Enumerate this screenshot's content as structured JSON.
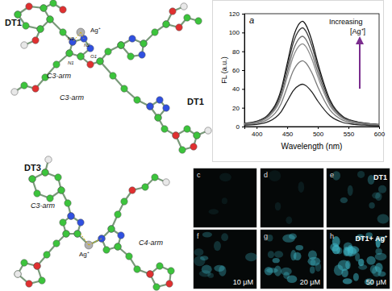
{
  "chart_data": {
    "type": "line",
    "title": "a",
    "x_label": "Wavelength (nm)",
    "y_label": "FL (a.u.)",
    "annotations": [
      "Increasing",
      "[Ag⁺]"
    ],
    "x": [
      380,
      400,
      420,
      440,
      450,
      460,
      470,
      475,
      480,
      490,
      500,
      520,
      540,
      560,
      580,
      600
    ],
    "series": [
      {
        "color": "#111111",
        "values": [
          3.4,
          5.6,
          13.4,
          39.2,
          67.2,
          95.2,
          109.8,
          112,
          108.6,
          91.8,
          67.2,
          28,
          11.2,
          5.6,
          3.4,
          2.2
        ]
      },
      {
        "color": "#3a3a3a",
        "values": [
          3.2,
          5.3,
          12.6,
          36.8,
          63,
          89.3,
          102.9,
          105,
          101.9,
          86.1,
          63,
          26.3,
          10.5,
          5.3,
          3.2,
          2.1
        ]
      },
      {
        "color": "#6e6e6e",
        "values": [
          2.9,
          4.8,
          11.5,
          33.6,
          57.6,
          81.6,
          94.1,
          96,
          93.1,
          78.7,
          57.6,
          24,
          9.6,
          4.8,
          2.9,
          1.9
        ]
      },
      {
        "color": "#8c8c8c",
        "values": [
          2.6,
          4.4,
          10.6,
          30.8,
          52.8,
          74.8,
          86.2,
          88,
          85.4,
          72.2,
          52.8,
          22,
          8.8,
          4.4,
          2.6,
          1.8
        ]
      },
      {
        "color": "#7a7a7a",
        "values": [
          2.1,
          3.5,
          8.4,
          24.5,
          42,
          59.5,
          68.6,
          70,
          67.9,
          57.4,
          42,
          17.5,
          7,
          3.5,
          2.1,
          1.4
        ]
      },
      {
        "color": "#222222",
        "values": [
          1.4,
          2.3,
          5.4,
          15.8,
          27,
          38.3,
          44.1,
          45,
          43.7,
          36.9,
          27,
          11.3,
          4.5,
          2.3,
          1.4,
          0.9
        ]
      }
    ],
    "xlim": [
      380,
      600
    ],
    "xticks": [
      400,
      450,
      500,
      550,
      600
    ],
    "ylim": [
      0,
      120
    ],
    "yticks": [
      0,
      20,
      40,
      60,
      80,
      100,
      120
    ],
    "grid": false
  },
  "structures": {
    "labels": [
      "DT1",
      "N3",
      "Ag⁺",
      "N2",
      "N1",
      "O1",
      "C3-arm",
      "C3-arm",
      "DT1",
      "DT3",
      "C3-arm",
      "C4-arm",
      "Ag⁺"
    ]
  },
  "micrographs": [
    {
      "label": "c"
    },
    {
      "label": "d"
    },
    {
      "label": "e",
      "caption": "DT1"
    },
    {
      "label": "f",
      "concentration": "10 μM"
    },
    {
      "label": "g",
      "concentration": "20 μM"
    },
    {
      "label": "h",
      "caption": "DT1+ Ag⁺",
      "concentration": "50 μM"
    }
  ]
}
